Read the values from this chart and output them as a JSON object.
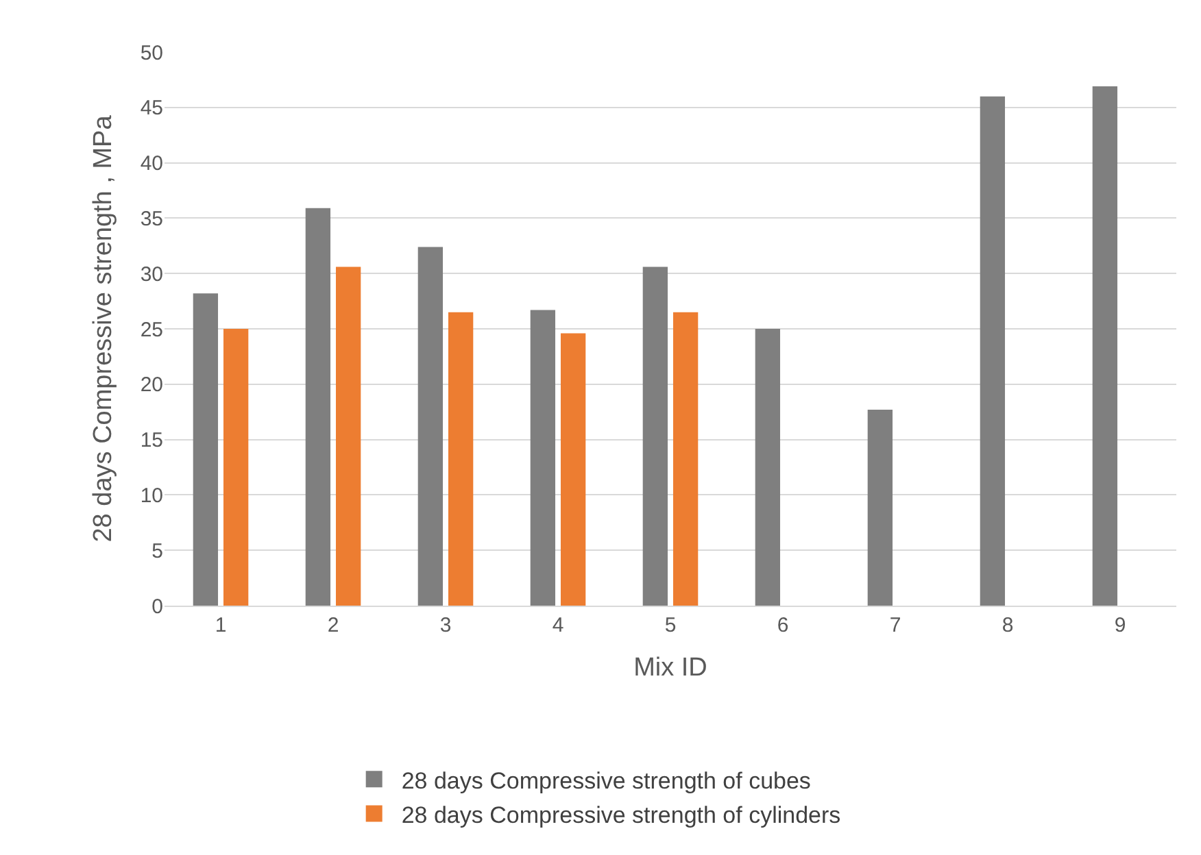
{
  "chart_data": {
    "type": "bar",
    "xlabel": "Mix ID",
    "ylabel": "28 days Compressive strength , MPa",
    "categories": [
      "1",
      "2",
      "3",
      "4",
      "5",
      "6",
      "7",
      "8",
      "9"
    ],
    "series": [
      {
        "name": "28 days Compressive strength of cubes",
        "color": "#7f7f7f",
        "values": [
          28.2,
          35.9,
          32.4,
          26.7,
          30.6,
          25.0,
          17.7,
          46.0,
          46.9
        ]
      },
      {
        "name": "28 days Compressive strength of cylinders",
        "color": "#ed7d31",
        "values": [
          25.0,
          30.6,
          26.5,
          24.6,
          26.5,
          null,
          null,
          null,
          null
        ]
      }
    ],
    "ylim": [
      0,
      50
    ],
    "yticks": [
      0,
      5,
      10,
      15,
      20,
      25,
      30,
      35,
      40,
      45,
      50
    ],
    "grid": "y",
    "legend": "bottom"
  }
}
